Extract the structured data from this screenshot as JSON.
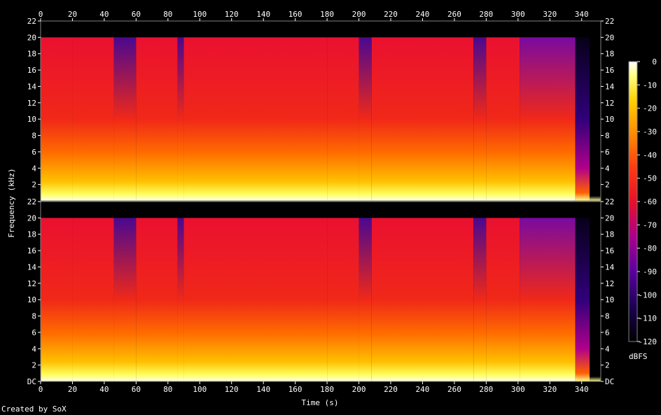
{
  "chart_data": {
    "type": "heatmap",
    "subtype": "spectrogram",
    "title": "",
    "xlabel": "Time (s)",
    "ylabel": "Frequency (kHz)",
    "xlim": [
      0,
      352
    ],
    "x_ticks": [
      "0",
      "20",
      "40",
      "60",
      "80",
      "100",
      "120",
      "140",
      "160",
      "180",
      "200",
      "220",
      "240",
      "260",
      "280",
      "300",
      "320",
      "340"
    ],
    "x_tick_values": [
      0,
      20,
      40,
      60,
      80,
      100,
      120,
      140,
      160,
      180,
      200,
      220,
      240,
      260,
      280,
      300,
      320,
      340
    ],
    "channels": [
      {
        "name": "",
        "ylim": [
          0,
          22
        ],
        "y_ticks": [
          "2",
          "4",
          "6",
          "8",
          "10",
          "12",
          "14",
          "16",
          "18",
          "20",
          "22"
        ],
        "y_tick_values": [
          2,
          4,
          6,
          8,
          10,
          12,
          14,
          16,
          18,
          20,
          22
        ]
      },
      {
        "name": "",
        "ylim": [
          0,
          22
        ],
        "y_ticks": [
          "DC",
          "2",
          "4",
          "6",
          "8",
          "10",
          "12",
          "14",
          "16",
          "18",
          "20",
          "22"
        ],
        "y_tick_values": [
          0,
          2,
          4,
          6,
          8,
          10,
          12,
          14,
          16,
          18,
          20,
          22
        ]
      }
    ],
    "colorbar": {
      "label": "dBFS",
      "range": [
        -120,
        0
      ],
      "ticks": [
        "0",
        "-10",
        "-20",
        "-30",
        "-40",
        "-50",
        "-60",
        "-70",
        "-80",
        "-90",
        "-100",
        "-110",
        "-120"
      ],
      "tick_values": [
        0,
        -10,
        -20,
        -30,
        -40,
        -50,
        -60,
        -70,
        -80,
        -90,
        -100,
        -110,
        -120
      ]
    },
    "lowpass_cutoff_khz": 20,
    "segments_s": [
      {
        "start": 0,
        "end": 20,
        "level": "loud"
      },
      {
        "start": 20,
        "end": 46,
        "level": "loud"
      },
      {
        "start": 46,
        "end": 60,
        "level": "quiet"
      },
      {
        "start": 60,
        "end": 86,
        "level": "loud"
      },
      {
        "start": 86,
        "end": 90,
        "level": "quiet"
      },
      {
        "start": 90,
        "end": 180,
        "level": "loud"
      },
      {
        "start": 180,
        "end": 200,
        "level": "loud"
      },
      {
        "start": 200,
        "end": 208,
        "level": "quiet"
      },
      {
        "start": 208,
        "end": 272,
        "level": "loud"
      },
      {
        "start": 272,
        "end": 280,
        "level": "quiet"
      },
      {
        "start": 280,
        "end": 301,
        "level": "loud"
      },
      {
        "start": 301,
        "end": 336,
        "level": "medium"
      },
      {
        "start": 336,
        "end": 345,
        "level": "fade"
      },
      {
        "start": 345,
        "end": 352,
        "level": "silent"
      }
    ],
    "colors": {
      "palette": [
        "#000000",
        "#1a0050",
        "#5a00a0",
        "#b0008a",
        "#e8102a",
        "#ff5a00",
        "#ffb000",
        "#ffff60",
        "#ffffff"
      ]
    }
  },
  "footer": {
    "credit": "Created by SoX"
  }
}
